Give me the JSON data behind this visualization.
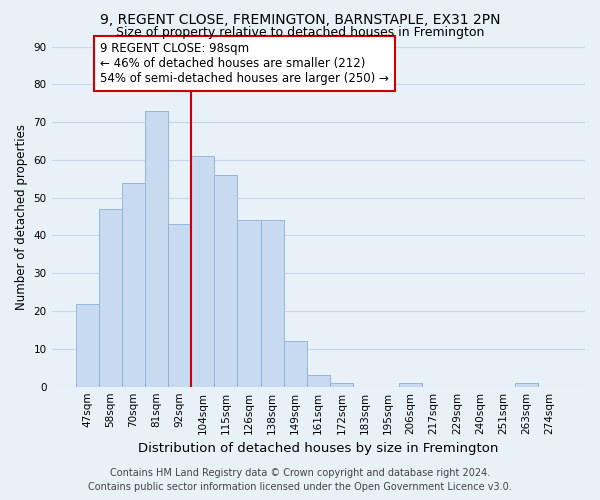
{
  "title": "9, REGENT CLOSE, FREMINGTON, BARNSTAPLE, EX31 2PN",
  "subtitle": "Size of property relative to detached houses in Fremington",
  "xlabel": "Distribution of detached houses by size in Fremington",
  "ylabel": "Number of detached properties",
  "categories": [
    "47sqm",
    "58sqm",
    "70sqm",
    "81sqm",
    "92sqm",
    "104sqm",
    "115sqm",
    "126sqm",
    "138sqm",
    "149sqm",
    "161sqm",
    "172sqm",
    "183sqm",
    "195sqm",
    "206sqm",
    "217sqm",
    "229sqm",
    "240sqm",
    "251sqm",
    "263sqm",
    "274sqm"
  ],
  "values": [
    22,
    47,
    54,
    73,
    43,
    61,
    56,
    44,
    44,
    12,
    3,
    1,
    0,
    0,
    1,
    0,
    0,
    0,
    0,
    1,
    0
  ],
  "bar_color": "#c8daf0",
  "bar_edge_color": "#8ab0d8",
  "vline_x": 4.5,
  "vline_color": "#cc0000",
  "ylim": [
    0,
    90
  ],
  "yticks": [
    0,
    10,
    20,
    30,
    40,
    50,
    60,
    70,
    80,
    90
  ],
  "annotation_title": "9 REGENT CLOSE: 98sqm",
  "annotation_line1": "← 46% of detached houses are smaller (212)",
  "annotation_line2": "54% of semi-detached houses are larger (250) →",
  "annotation_box_color": "#ffffff",
  "annotation_box_edge": "#cc0000",
  "footer_line1": "Contains HM Land Registry data © Crown copyright and database right 2024.",
  "footer_line2": "Contains public sector information licensed under the Open Government Licence v3.0.",
  "title_fontsize": 10,
  "subtitle_fontsize": 9,
  "xlabel_fontsize": 9.5,
  "ylabel_fontsize": 8.5,
  "tick_fontsize": 7.5,
  "annotation_fontsize": 8.5,
  "footer_fontsize": 7,
  "background_color": "#e8f0f8",
  "grid_color": "#c8d8ec"
}
